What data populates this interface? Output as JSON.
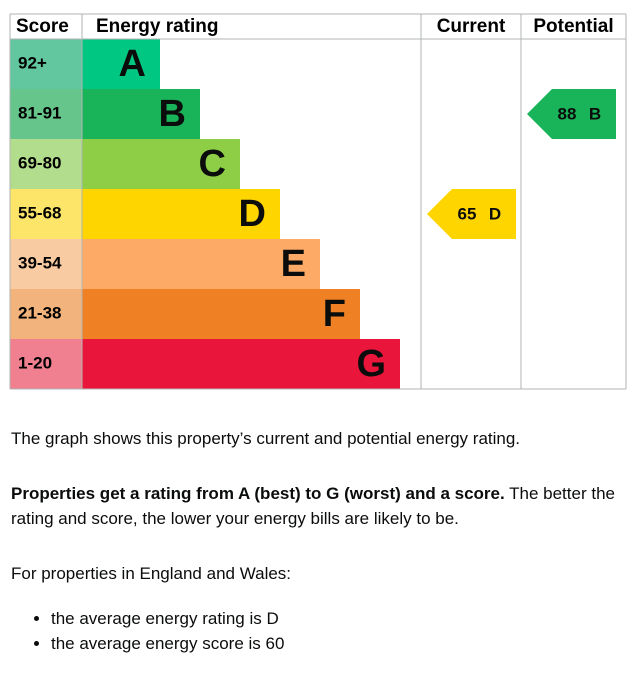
{
  "graph": {
    "headers": [
      "Score",
      "Energy rating",
      "Current",
      "Potential"
    ],
    "bands": [
      {
        "score": "92+",
        "letter": "A",
        "color": "#00c781",
        "score_color": "#62c79e"
      },
      {
        "score": "81-91",
        "letter": "B",
        "color": "#19b459",
        "score_color": "#65c58a"
      },
      {
        "score": "69-80",
        "letter": "C",
        "color": "#8dce46",
        "score_color": "#b2dd8c"
      },
      {
        "score": "55-68",
        "letter": "D",
        "color": "#ffd500",
        "score_color": "#fde56a"
      },
      {
        "score": "39-54",
        "letter": "E",
        "color": "#fcaa65",
        "score_color": "#f9cba3"
      },
      {
        "score": "21-38",
        "letter": "F",
        "color": "#ef8023",
        "score_color": "#f3b37c"
      },
      {
        "score": "1-20",
        "letter": "G",
        "color": "#e9153b",
        "score_color": "#f08090"
      }
    ],
    "current": {
      "value": 65,
      "letter": "D"
    },
    "potential": {
      "value": 88,
      "letter": "B"
    }
  },
  "text": {
    "p1": "The graph shows this property’s current and potential energy rating.",
    "p2_bold": "Properties get a rating from A (best) to G (worst) and a score.",
    "p2_rest": " The better the rating and score, the lower your energy bills are likely to be.",
    "p3": "For properties in England and Wales:",
    "list": [
      "the average energy rating is D",
      "the average energy score is 60"
    ]
  }
}
